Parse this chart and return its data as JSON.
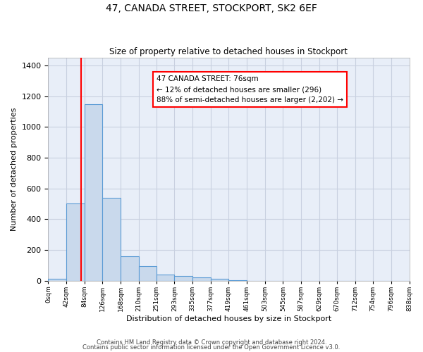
{
  "title": "47, CANADA STREET, STOCKPORT, SK2 6EF",
  "subtitle": "Size of property relative to detached houses in Stockport",
  "xlabel": "Distribution of detached houses by size in Stockport",
  "ylabel": "Number of detached properties",
  "bin_edges": [
    0,
    42,
    84,
    126,
    168,
    210,
    251,
    293,
    335,
    377,
    419,
    461,
    503,
    545,
    587,
    629,
    670,
    712,
    754,
    796,
    838
  ],
  "bar_heights": [
    10,
    500,
    1150,
    540,
    160,
    95,
    40,
    30,
    20,
    10,
    5,
    0,
    0,
    0,
    0,
    0,
    0,
    0,
    0,
    0
  ],
  "bar_color": "#c9d9ec",
  "bar_edge_color": "#5b9bd5",
  "property_size": 76,
  "annotation_line1": "47 CANADA STREET: 76sqm",
  "annotation_line2": "← 12% of detached houses are smaller (296)",
  "annotation_line3": "88% of semi-detached houses are larger (2,202) →",
  "annotation_box_color": "white",
  "annotation_box_edge_color": "red",
  "vline_color": "red",
  "ylim": [
    0,
    1450
  ],
  "yticks": [
    0,
    200,
    400,
    600,
    800,
    1000,
    1200,
    1400
  ],
  "plot_bg_color": "#e8eef8",
  "grid_color": "#c8d0e0",
  "footnote1": "Contains HM Land Registry data © Crown copyright and database right 2024.",
  "footnote2": "Contains public sector information licensed under the Open Government Licence v3.0."
}
